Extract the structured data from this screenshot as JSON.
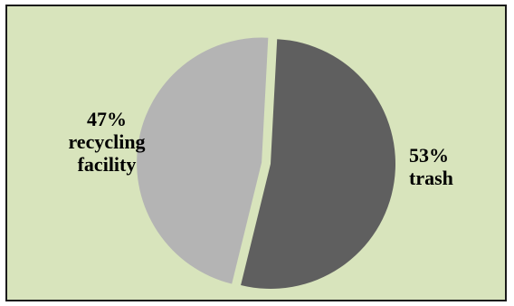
{
  "chart_data": {
    "type": "pie",
    "title": "",
    "slices": [
      {
        "label": "trash",
        "percent_text": "53%",
        "value": 53,
        "color": "#5f5f5f",
        "exploded": false
      },
      {
        "label_lines": [
          "recycling",
          "facility"
        ],
        "percent_text": "47%",
        "value": 47,
        "color": "#b4b4b4",
        "exploded": true
      }
    ],
    "legend": "none",
    "background_color": "#d8e4bc",
    "border_color": "#1a1a1a"
  }
}
